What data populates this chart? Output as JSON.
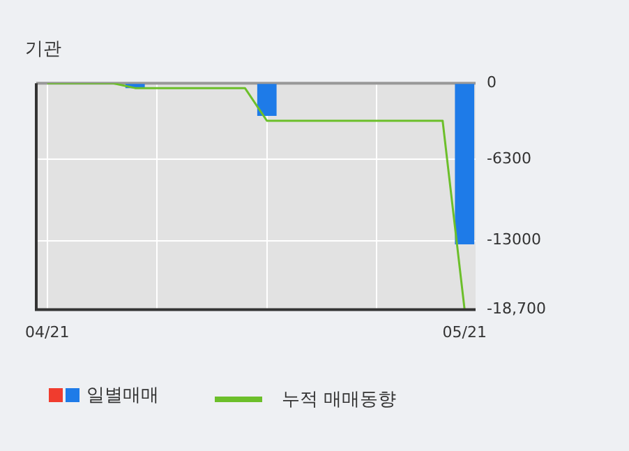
{
  "chart_data": {
    "type": "bar",
    "title": "기관",
    "categories": [
      "04/21",
      null,
      null,
      null,
      null,
      null,
      null,
      null,
      null,
      null,
      null,
      null,
      null,
      null,
      null,
      null,
      null,
      null,
      null,
      "05/21"
    ],
    "series": [
      {
        "name": "일별매매",
        "color": "#1e7be8",
        "values": [
          0,
          0,
          0,
          0,
          -400,
          0,
          0,
          0,
          0,
          0,
          -2700,
          0,
          0,
          0,
          0,
          0,
          0,
          0,
          0,
          -13300
        ]
      },
      {
        "name": "누적 매매동향",
        "type": "line",
        "color": "#6cbf2a",
        "values": [
          0,
          0,
          0,
          0,
          -400,
          -400,
          -400,
          -400,
          -400,
          -400,
          -3100,
          -3100,
          -3100,
          -3100,
          -3100,
          -3100,
          -3100,
          -3100,
          -3100,
          -18700
        ]
      }
    ],
    "ylim": [
      -18700,
      0
    ],
    "yticks": [
      0,
      -6300,
      -13000,
      {
        "value": -18700,
        "label": "-18,700"
      }
    ],
    "grid": true,
    "legend": "bottom"
  }
}
